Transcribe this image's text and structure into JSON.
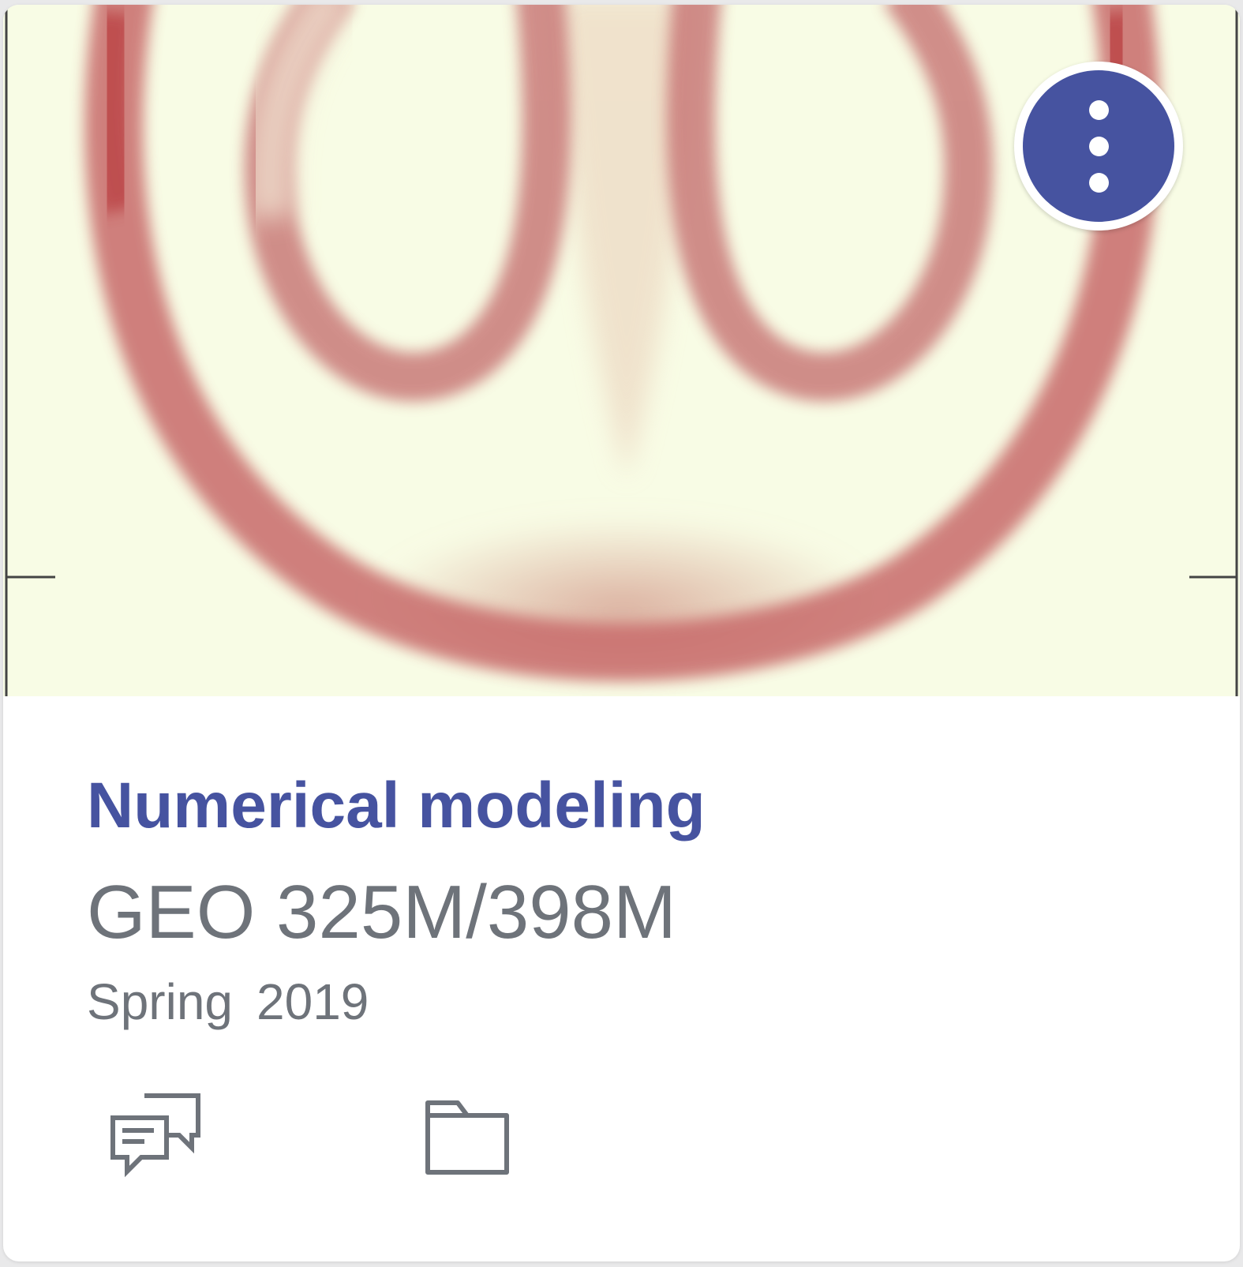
{
  "course": {
    "title": "Numerical modeling",
    "code": "GEO 325M/398M",
    "term": {
      "season": "Spring",
      "year": "2019"
    }
  },
  "cover_image": {
    "description_icon": "plume-simulation-image",
    "background_color": "#f8fce5",
    "band_color": "#b83a3e"
  },
  "menu_button": {
    "icon": "more-vertical-icon",
    "color": "#4653a0"
  },
  "actions": [
    {
      "icon": "discussions-icon"
    },
    {
      "icon": "folder-icon"
    }
  ],
  "colors": {
    "accent": "#4653a0",
    "text_muted": "#6e737a"
  }
}
